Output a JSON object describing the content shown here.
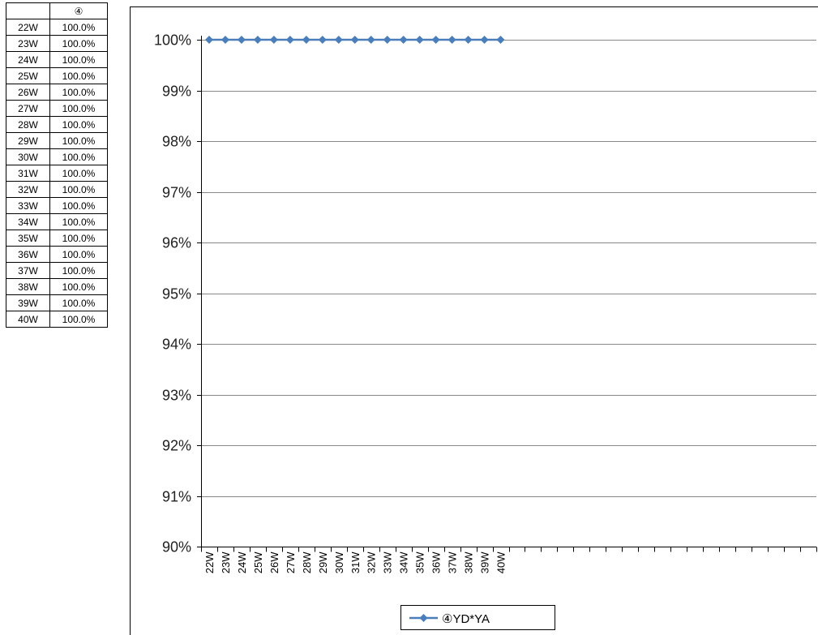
{
  "table": {
    "header": [
      "",
      "④"
    ],
    "rows": [
      [
        "22W",
        "100.0%"
      ],
      [
        "23W",
        "100.0%"
      ],
      [
        "24W",
        "100.0%"
      ],
      [
        "25W",
        "100.0%"
      ],
      [
        "26W",
        "100.0%"
      ],
      [
        "27W",
        "100.0%"
      ],
      [
        "28W",
        "100.0%"
      ],
      [
        "29W",
        "100.0%"
      ],
      [
        "30W",
        "100.0%"
      ],
      [
        "31W",
        "100.0%"
      ],
      [
        "32W",
        "100.0%"
      ],
      [
        "33W",
        "100.0%"
      ],
      [
        "34W",
        "100.0%"
      ],
      [
        "35W",
        "100.0%"
      ],
      [
        "36W",
        "100.0%"
      ],
      [
        "37W",
        "100.0%"
      ],
      [
        "38W",
        "100.0%"
      ],
      [
        "39W",
        "100.0%"
      ],
      [
        "40W",
        "100.0%"
      ]
    ]
  },
  "chart_data": {
    "type": "line",
    "title": "",
    "xlabel": "",
    "ylabel": "",
    "categories": [
      "22W",
      "23W",
      "24W",
      "25W",
      "26W",
      "27W",
      "28W",
      "29W",
      "30W",
      "31W",
      "32W",
      "33W",
      "34W",
      "35W",
      "36W",
      "37W",
      "38W",
      "39W",
      "40W"
    ],
    "slots": 38,
    "ylim": [
      90,
      100
    ],
    "ytick_labels": [
      "90%",
      "91%",
      "92%",
      "93%",
      "94%",
      "95%",
      "96%",
      "97%",
      "98%",
      "99%",
      "100%"
    ],
    "grid": true,
    "legend": "bottom",
    "series": [
      {
        "name": "④YD*YA",
        "color": "#4a7ebb",
        "marker": "diamond",
        "values": [
          100,
          100,
          100,
          100,
          100,
          100,
          100,
          100,
          100,
          100,
          100,
          100,
          100,
          100,
          100,
          100,
          100,
          100,
          100
        ]
      }
    ]
  }
}
